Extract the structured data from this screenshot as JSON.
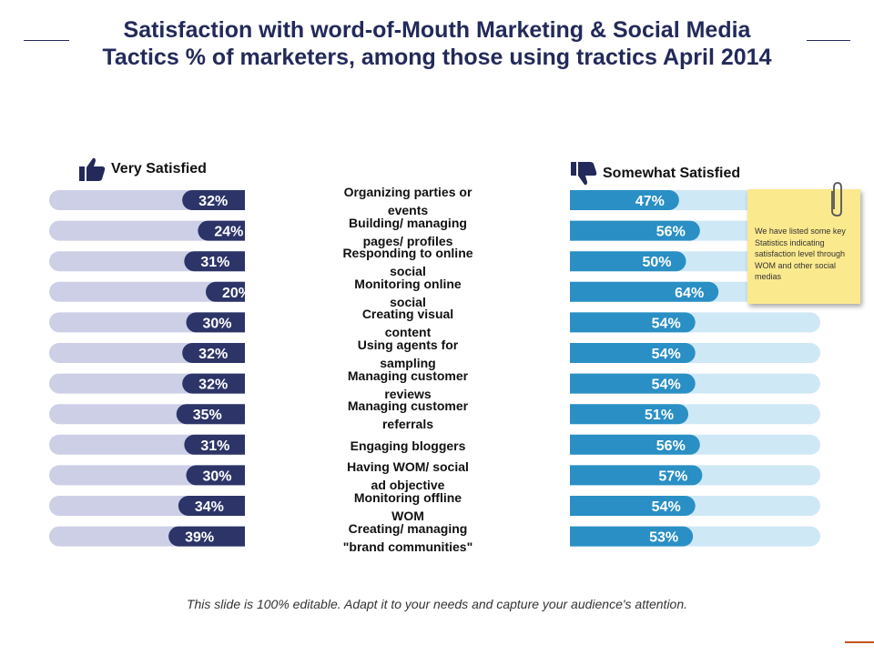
{
  "title_line_1": "Satisfaction with word-of-Mouth Marketing & Social Media",
  "title_line_2": "Tactics % of marketers, among those using tractics April 2014",
  "legend": {
    "left": "Very Satisfied",
    "right": "Somewhat Satisfied",
    "left_icon": "thumbs-up-icon",
    "right_icon": "thumbs-down-icon"
  },
  "note": {
    "text": "We have listed some key Statistics indicating satisfaction level through WOM and other social medias",
    "icon": "paperclip-icon"
  },
  "footer": "This slide is 100% editable. Adapt it to your needs and capture your audience's attention.",
  "colors": {
    "title": "#232a5a",
    "left_fill": "#2c3468",
    "left_track": "#cdcfe6",
    "right_fill": "#2a8fc4",
    "right_track": "#cfe8f6",
    "note": "#fbe98e"
  },
  "chart_data": {
    "type": "bar",
    "title": "Satisfaction with word-of-Mouth Marketing & Social Media Tactics % of marketers, among those using tractics April 2014",
    "unit": "%",
    "ylim": [
      0,
      100
    ],
    "categories": [
      [
        "Organizing parties or",
        "events"
      ],
      [
        "Building/ managing",
        "pages/ profiles"
      ],
      [
        "Responding to online",
        "social"
      ],
      [
        "Monitoring online",
        "social"
      ],
      [
        "Creating visual",
        "content"
      ],
      [
        "Using agents for",
        "sampling"
      ],
      [
        "Managing customer",
        "reviews"
      ],
      [
        "Managing customer",
        "referrals"
      ],
      [
        "Engaging bloggers"
      ],
      [
        "Having WOM/ social",
        "ad objective"
      ],
      [
        "Monitoring offline",
        "WOM"
      ],
      [
        "Creating/ managing",
        "\"brand communities\""
      ]
    ],
    "series": [
      {
        "name": "Very Satisfied",
        "values": [
          32,
          24,
          31,
          20,
          30,
          32,
          32,
          35,
          31,
          30,
          34,
          39
        ]
      },
      {
        "name": "Somewhat Satisfied",
        "values": [
          47,
          56,
          50,
          64,
          54,
          54,
          54,
          51,
          56,
          57,
          54,
          53
        ]
      }
    ]
  }
}
